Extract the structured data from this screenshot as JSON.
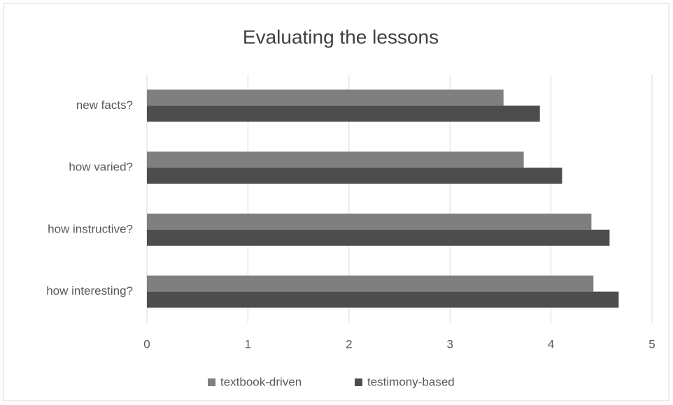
{
  "chart_data": {
    "type": "bar",
    "orientation": "horizontal",
    "title": "Evaluating the lessons",
    "categories": [
      "new facts?",
      "how varied?",
      "how instructive?",
      "how interesting?"
    ],
    "series": [
      {
        "name": "textbook-driven",
        "color": "#7f7f7f",
        "values": [
          3.53,
          3.73,
          4.4,
          4.42
        ]
      },
      {
        "name": "testimony-based",
        "color": "#4d4d4d",
        "values": [
          3.89,
          4.11,
          4.58,
          4.67
        ]
      }
    ],
    "xlim": [
      0,
      5
    ],
    "xticks": [
      0,
      1,
      2,
      3,
      4,
      5
    ],
    "grid": true,
    "legend": "bottom"
  }
}
